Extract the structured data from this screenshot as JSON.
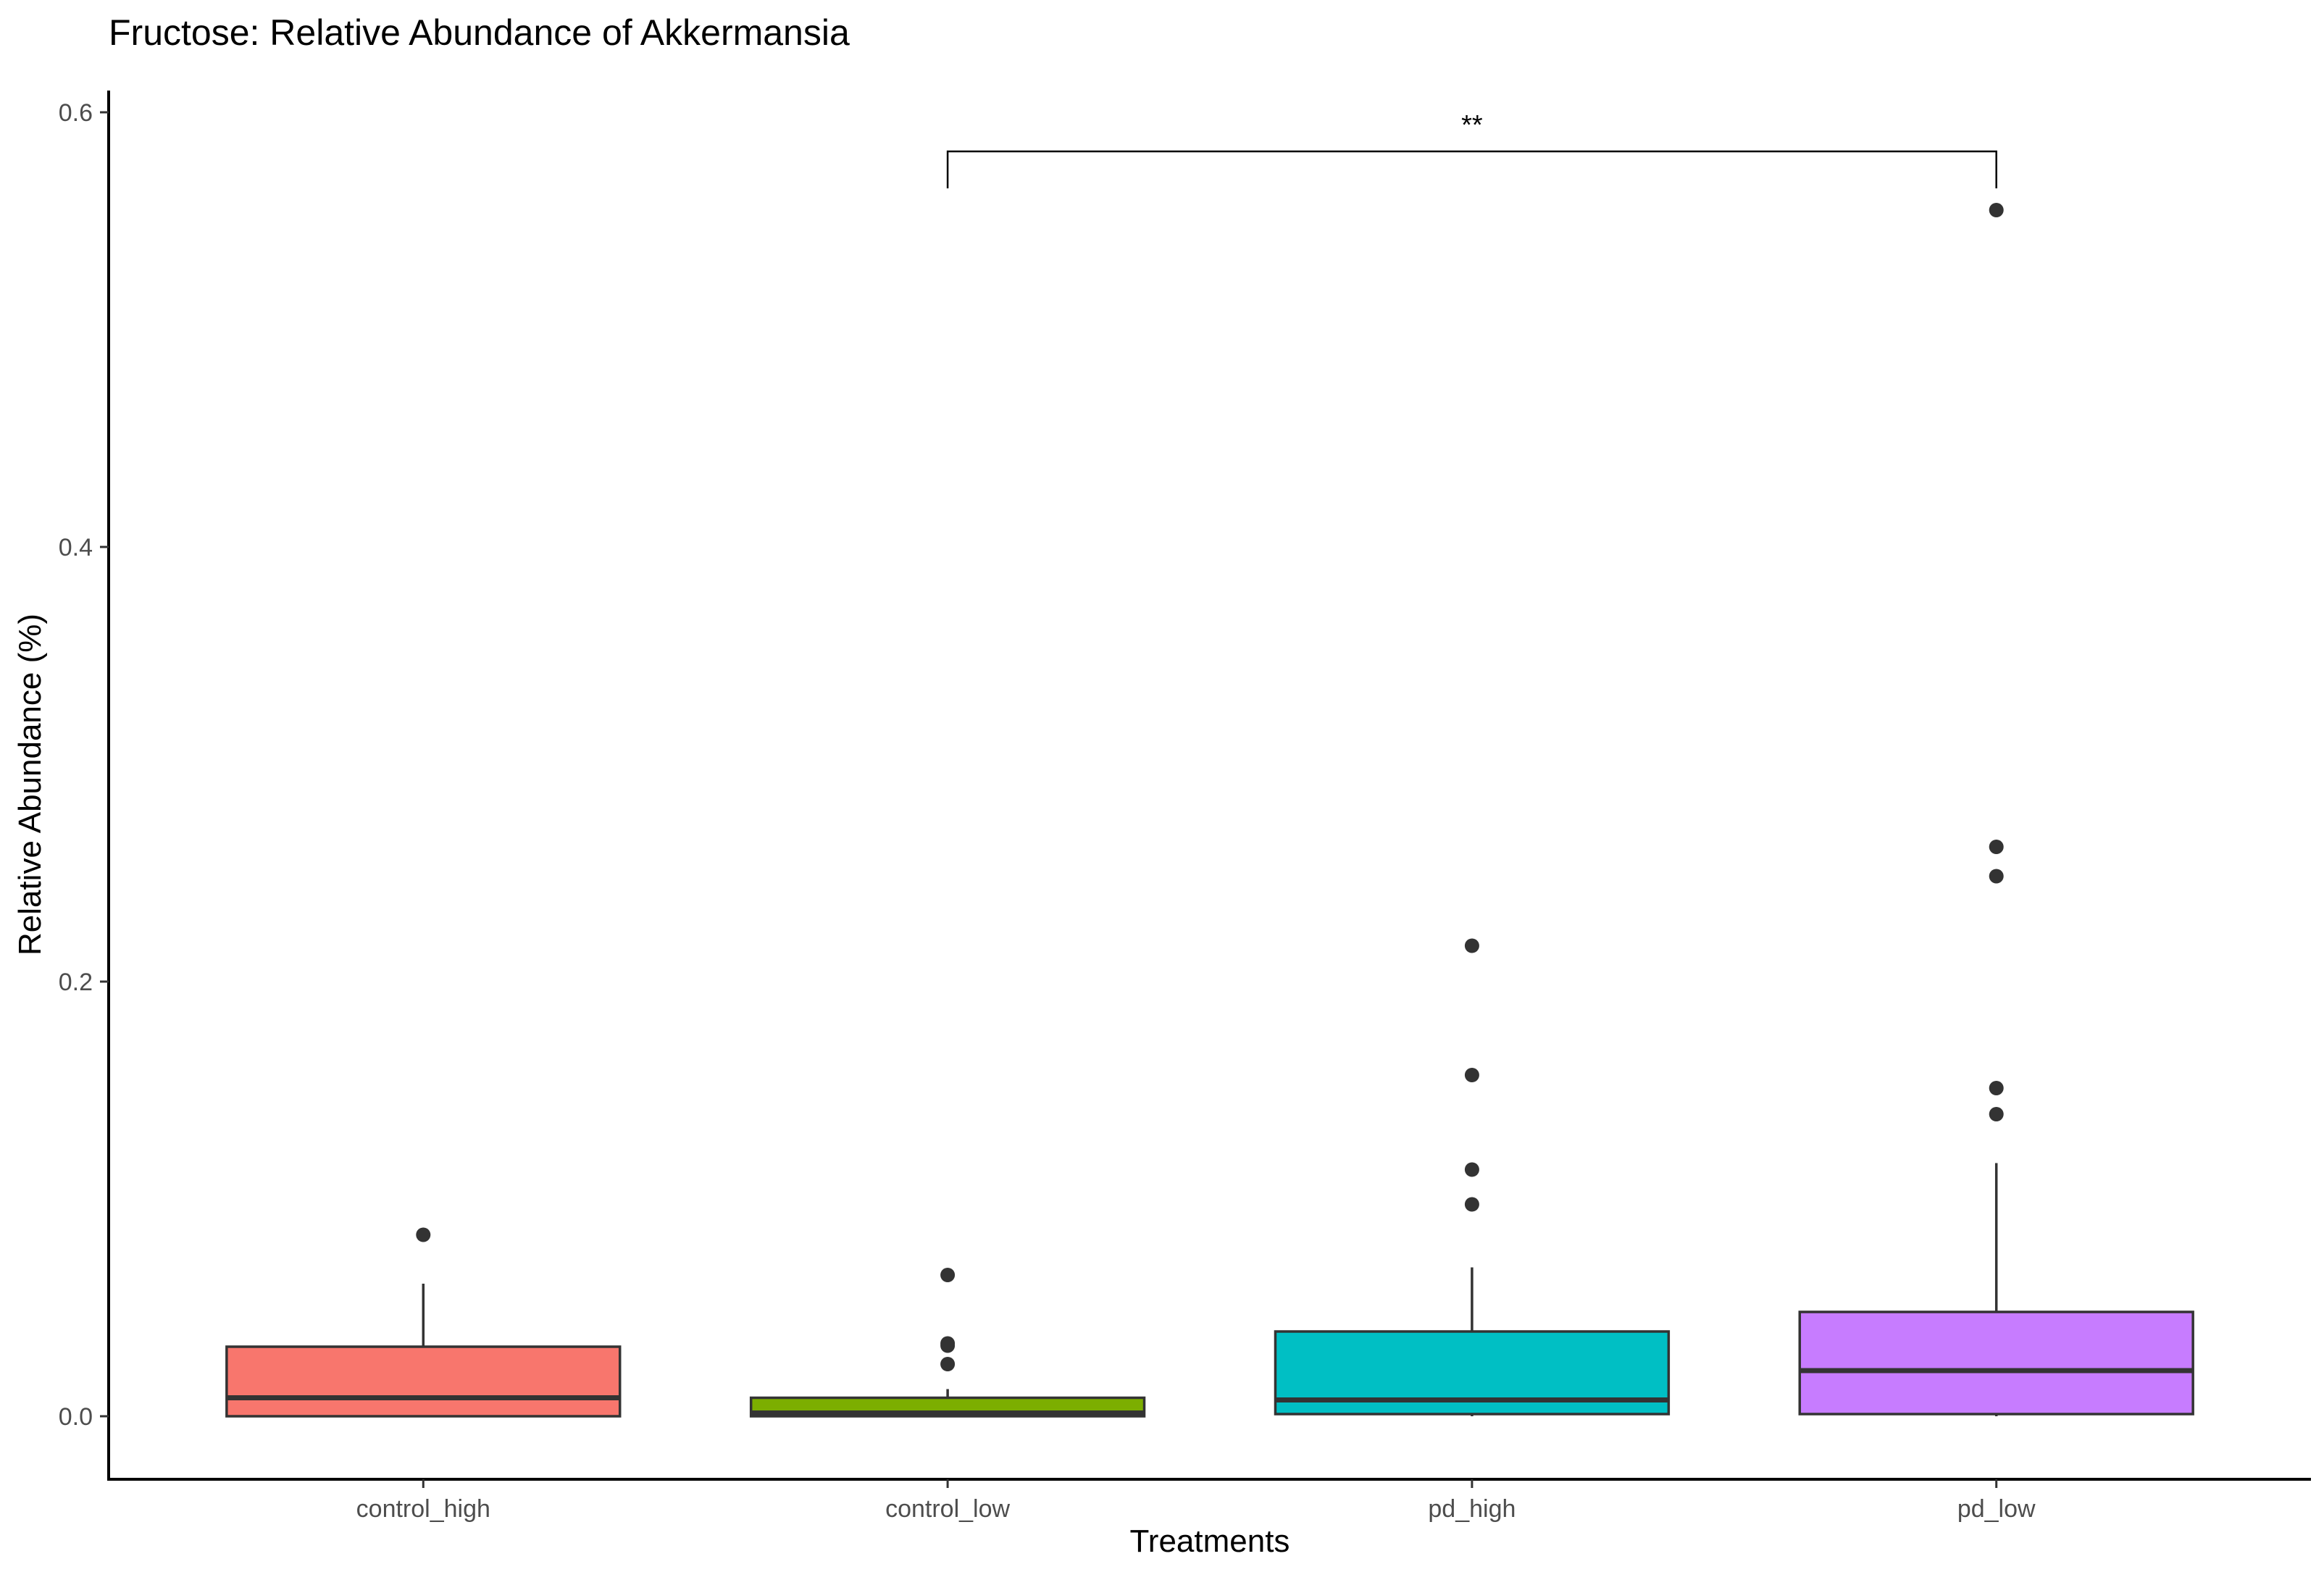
{
  "chart_data": {
    "type": "boxplot",
    "title": "Fructose: Relative Abundance of Akkermansia",
    "xlabel": "Treatments",
    "ylabel": "Relative Abundance (%)",
    "ylim": [
      -0.029,
      0.61
    ],
    "yticks": [
      0.0,
      0.2,
      0.4,
      0.6
    ],
    "ytick_labels": [
      "0.0",
      "0.2",
      "0.4",
      "0.6"
    ],
    "grid": false,
    "legend": "none",
    "categories": [
      "control_high",
      "control_low",
      "pd_high",
      "pd_low"
    ],
    "boxes": [
      {
        "category": "control_high",
        "color": "#F8766D",
        "whisker_low": 0.0,
        "q1": 0.0,
        "median": 0.0085,
        "q3": 0.032,
        "whisker_high": 0.061,
        "outliers": [
          0.0835
        ]
      },
      {
        "category": "control_low",
        "color": "#7CAE00",
        "whisker_low": 0.0,
        "q1": 0.0,
        "median": 0.0015,
        "q3": 0.0085,
        "whisker_high": 0.0125,
        "outliers": [
          0.065,
          0.0335,
          0.0325,
          0.024
        ]
      },
      {
        "category": "pd_high",
        "color": "#00BFC4",
        "whisker_low": 0.0,
        "q1": 0.001,
        "median": 0.0075,
        "q3": 0.039,
        "whisker_high": 0.0685,
        "outliers": [
          0.2165,
          0.157,
          0.1135,
          0.0975
        ]
      },
      {
        "category": "pd_low",
        "color": "#C77CFF",
        "whisker_low": 0.0,
        "q1": 0.001,
        "median": 0.021,
        "q3": 0.048,
        "whisker_high": 0.1165,
        "outliers": [
          0.555,
          0.262,
          0.2485,
          0.151,
          0.139
        ]
      }
    ],
    "significance": [
      {
        "from": "control_low",
        "to": "pd_low",
        "label": "**",
        "y": 0.582,
        "tip_y": 0.565
      }
    ]
  }
}
